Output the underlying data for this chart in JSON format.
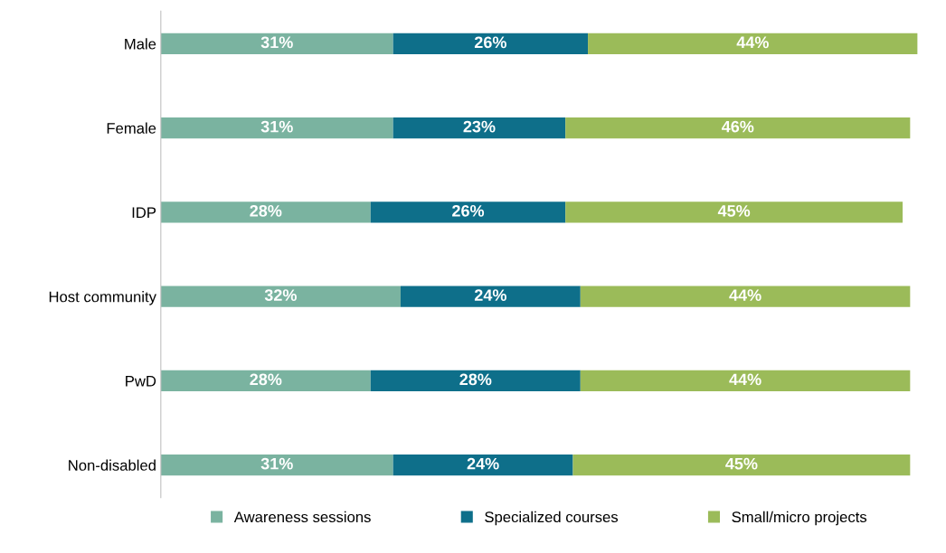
{
  "chart_data": {
    "type": "bar",
    "orientation": "horizontal",
    "stacked": true,
    "legend": "bottom",
    "grid": false,
    "categories": [
      "Male",
      "Female",
      "IDP",
      "Host community",
      "PwD",
      "Non-disabled"
    ],
    "series": [
      {
        "name": "Awareness sessions",
        "color": "#7ab3a0",
        "values": [
          31,
          31,
          28,
          32,
          28,
          31
        ],
        "value_labels": [
          "31%",
          "31%",
          "28%",
          "32%",
          "28%",
          "31%"
        ]
      },
      {
        "name": "Specialized courses",
        "color": "#0e6f8a",
        "values": [
          26,
          23,
          26,
          24,
          28,
          24
        ],
        "value_labels": [
          "26%",
          "23%",
          "26%",
          "24%",
          "28%",
          "24%"
        ]
      },
      {
        "name": "Small/micro projects",
        "color": "#9bbb59",
        "values": [
          44,
          46,
          45,
          44,
          44,
          45
        ],
        "value_labels": [
          "44%",
          "46%",
          "45%",
          "44%",
          "44%",
          "45%"
        ]
      }
    ]
  }
}
